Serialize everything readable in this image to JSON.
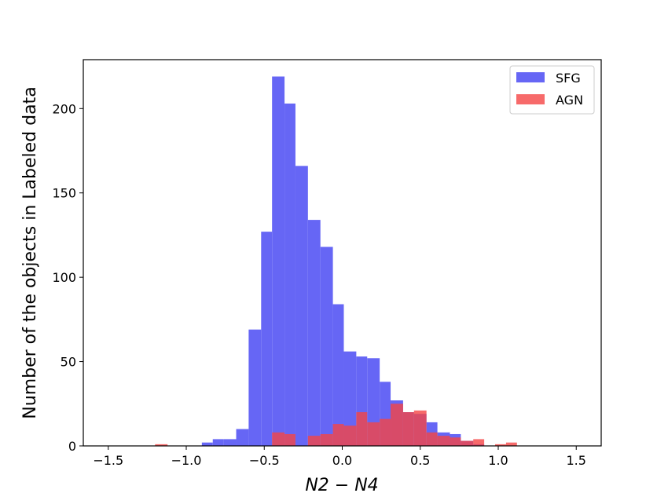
{
  "chart_data": {
    "type": "bar",
    "title": "",
    "xlabel": "N2 − N4",
    "ylabel": "Number of the objects in Labeled data",
    "xlim": [
      -1.66,
      1.66
    ],
    "ylim": [
      0,
      229
    ],
    "x_ticks": [
      -1.5,
      -1.0,
      -0.5,
      0.0,
      0.5,
      1.0,
      1.5
    ],
    "x_tick_labels": [
      "−1.5",
      "−1.0",
      "−0.5",
      "0.0",
      "0.5",
      "1.0",
      "1.5"
    ],
    "y_ticks": [
      0,
      50,
      100,
      150,
      200
    ],
    "y_tick_labels": [
      "0",
      "50",
      "100",
      "150",
      "200"
    ],
    "grid": false,
    "legend_position": "top-right",
    "series": [
      {
        "name": "SFG",
        "color": "#6666f5",
        "opacity": 1.0,
        "bins": [
          {
            "x0": -0.9,
            "x1": -0.83,
            "y": 2
          },
          {
            "x0": -0.83,
            "x1": -0.76,
            "y": 4
          },
          {
            "x0": -0.76,
            "x1": -0.68,
            "y": 4
          },
          {
            "x0": -0.68,
            "x1": -0.6,
            "y": 10
          },
          {
            "x0": -0.6,
            "x1": -0.52,
            "y": 69
          },
          {
            "x0": -0.52,
            "x1": -0.45,
            "y": 127
          },
          {
            "x0": -0.45,
            "x1": -0.37,
            "y": 219
          },
          {
            "x0": -0.37,
            "x1": -0.3,
            "y": 203
          },
          {
            "x0": -0.3,
            "x1": -0.22,
            "y": 166
          },
          {
            "x0": -0.22,
            "x1": -0.14,
            "y": 134
          },
          {
            "x0": -0.14,
            "x1": -0.06,
            "y": 118
          },
          {
            "x0": -0.06,
            "x1": 0.01,
            "y": 84
          },
          {
            "x0": 0.01,
            "x1": 0.09,
            "y": 56
          },
          {
            "x0": 0.09,
            "x1": 0.16,
            "y": 53
          },
          {
            "x0": 0.16,
            "x1": 0.24,
            "y": 52
          },
          {
            "x0": 0.24,
            "x1": 0.31,
            "y": 38
          },
          {
            "x0": 0.31,
            "x1": 0.39,
            "y": 27
          },
          {
            "x0": 0.39,
            "x1": 0.46,
            "y": 20
          },
          {
            "x0": 0.46,
            "x1": 0.54,
            "y": 19
          },
          {
            "x0": 0.54,
            "x1": 0.61,
            "y": 14
          },
          {
            "x0": 0.61,
            "x1": 0.69,
            "y": 8
          },
          {
            "x0": 0.69,
            "x1": 0.76,
            "y": 7
          },
          {
            "x0": 0.76,
            "x1": 0.84,
            "y": 3
          },
          {
            "x0": 0.84,
            "x1": 0.91,
            "y": 1
          }
        ]
      },
      {
        "name": "AGN",
        "color": "#f54545",
        "opacity": 0.8,
        "bins": [
          {
            "x0": -1.2,
            "x1": -1.12,
            "y": 1
          },
          {
            "x0": -0.45,
            "x1": -0.37,
            "y": 8
          },
          {
            "x0": -0.37,
            "x1": -0.3,
            "y": 7
          },
          {
            "x0": -0.22,
            "x1": -0.14,
            "y": 6
          },
          {
            "x0": -0.14,
            "x1": -0.06,
            "y": 7
          },
          {
            "x0": -0.06,
            "x1": 0.01,
            "y": 13
          },
          {
            "x0": 0.01,
            "x1": 0.09,
            "y": 12
          },
          {
            "x0": 0.09,
            "x1": 0.16,
            "y": 20
          },
          {
            "x0": 0.16,
            "x1": 0.24,
            "y": 14
          },
          {
            "x0": 0.24,
            "x1": 0.31,
            "y": 16
          },
          {
            "x0": 0.31,
            "x1": 0.39,
            "y": 25
          },
          {
            "x0": 0.39,
            "x1": 0.46,
            "y": 20
          },
          {
            "x0": 0.46,
            "x1": 0.54,
            "y": 21
          },
          {
            "x0": 0.54,
            "x1": 0.61,
            "y": 8
          },
          {
            "x0": 0.61,
            "x1": 0.69,
            "y": 6
          },
          {
            "x0": 0.69,
            "x1": 0.76,
            "y": 5
          },
          {
            "x0": 0.76,
            "x1": 0.84,
            "y": 3
          },
          {
            "x0": 0.84,
            "x1": 0.91,
            "y": 4
          },
          {
            "x0": 0.98,
            "x1": 1.05,
            "y": 1
          },
          {
            "x0": 1.05,
            "x1": 1.12,
            "y": 2
          }
        ]
      }
    ]
  }
}
